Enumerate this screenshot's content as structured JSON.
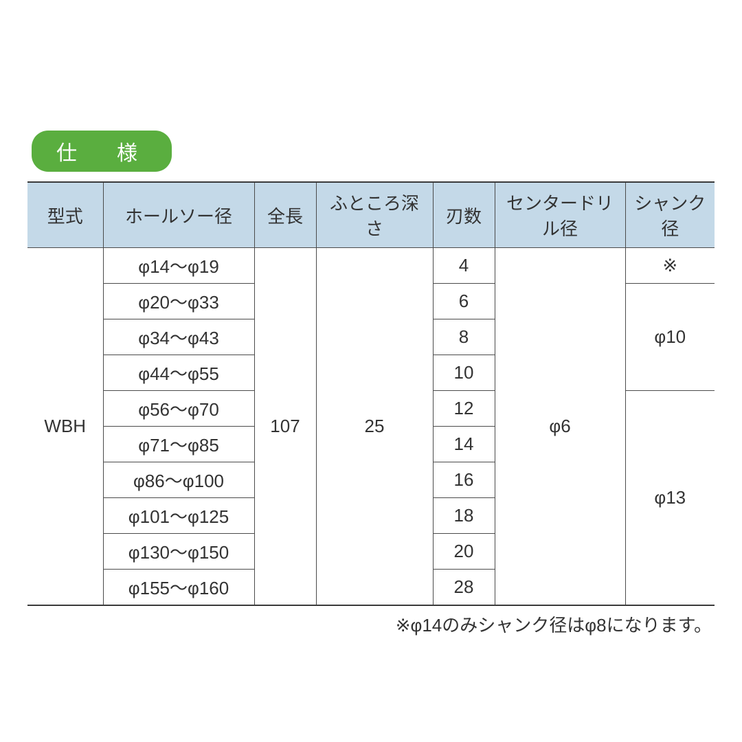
{
  "badge": "仕　様",
  "headers": {
    "model": "型式",
    "holesaw": "ホールソー径",
    "length": "全長",
    "depth": "ふところ深さ",
    "blades": "刃数",
    "center": "センタードリル径",
    "shank": "シャンク径"
  },
  "model": "WBH",
  "length": "107",
  "depth": "25",
  "center": "φ6",
  "shank_note": "※",
  "shank_1": "φ10",
  "shank_2": "φ13",
  "rows": [
    {
      "holesaw": "φ14～φ19",
      "blades": "4"
    },
    {
      "holesaw": "φ20～φ33",
      "blades": "6"
    },
    {
      "holesaw": "φ34～φ43",
      "blades": "8"
    },
    {
      "holesaw": "φ44～φ55",
      "blades": "10"
    },
    {
      "holesaw": "φ56～φ70",
      "blades": "12"
    },
    {
      "holesaw": "φ71～φ85",
      "blades": "14"
    },
    {
      "holesaw": "φ86～φ100",
      "blades": "16"
    },
    {
      "holesaw": "φ101～φ125",
      "blades": "18"
    },
    {
      "holesaw": "φ130～φ150",
      "blades": "20"
    },
    {
      "holesaw": "φ155～φ160",
      "blades": "28"
    }
  ],
  "footnote": "※φ14のみシャンク径はφ8になります。",
  "colors": {
    "badge_bg": "#5aae3f",
    "header_bg": "#c4d9e8",
    "border": "#4a4a4a",
    "text": "#333333",
    "bg": "#ffffff"
  }
}
